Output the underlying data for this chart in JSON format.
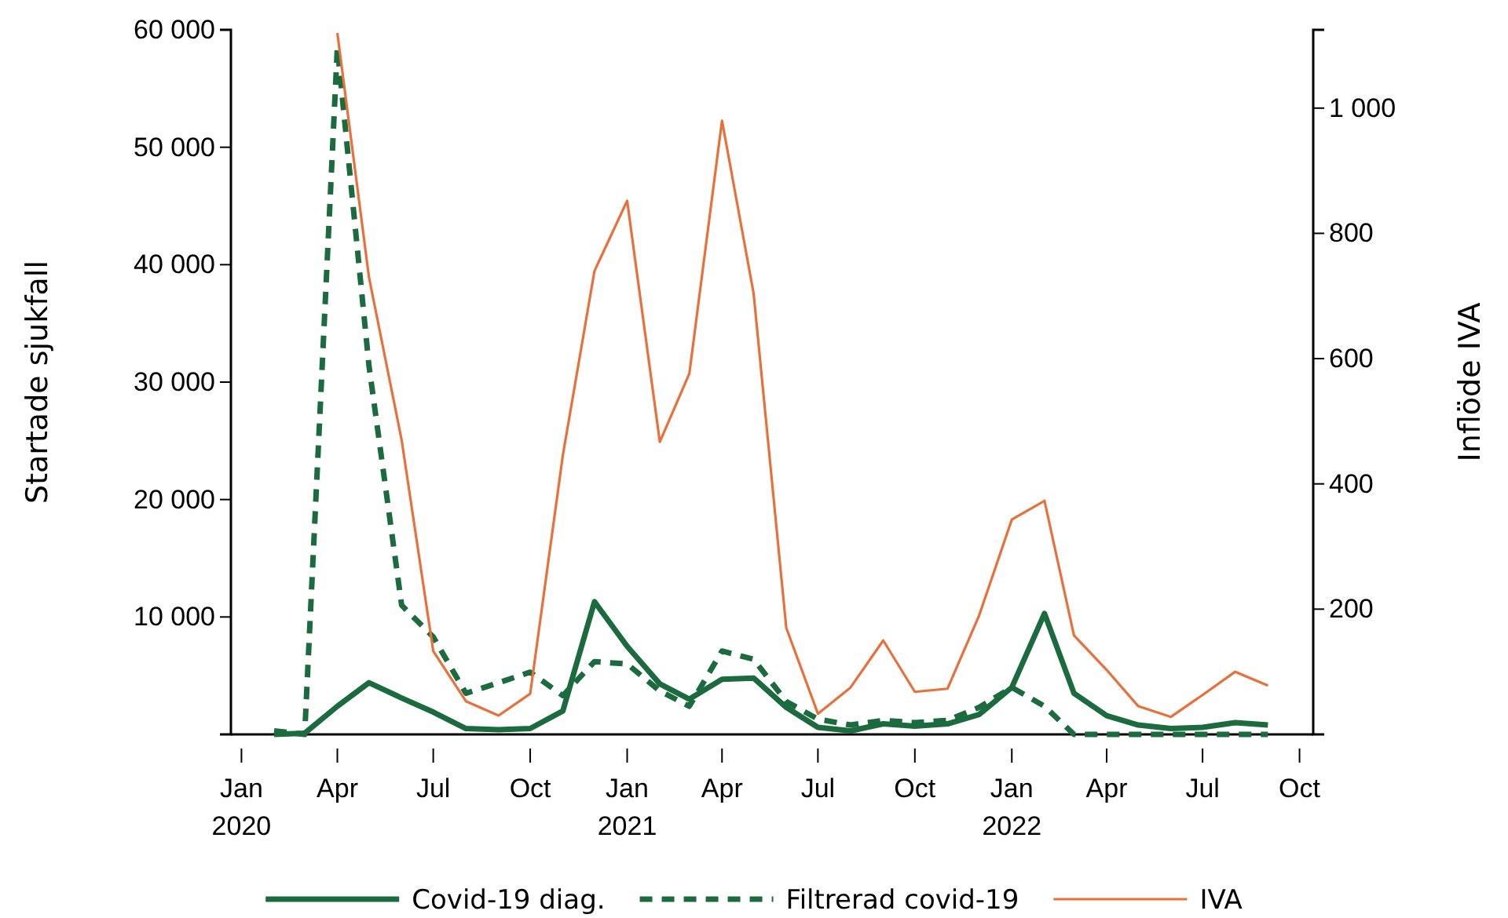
{
  "chart_data": {
    "type": "line",
    "ylabel": "Startade sjukfall",
    "y2label": "Inflöde IVA",
    "x": [
      "2020-02",
      "2020-03",
      "2020-04",
      "2020-05",
      "2020-06",
      "2020-07",
      "2020-08",
      "2020-09",
      "2020-10",
      "2020-11",
      "2020-12",
      "2021-01",
      "2021-02",
      "2021-03",
      "2021-04",
      "2021-05",
      "2021-06",
      "2021-07",
      "2021-08",
      "2021-09",
      "2021-10",
      "2021-11",
      "2021-12",
      "2022-01",
      "2022-02",
      "2022-03",
      "2022-04",
      "2022-05",
      "2022-06",
      "2022-07",
      "2022-08",
      "2022-09"
    ],
    "series": [
      {
        "name": "Covid-19 diag.",
        "color": "#1b6b3f",
        "line_style": "solid",
        "values": [
          0,
          100,
          2400,
          4400,
          3100,
          1900,
          500,
          400,
          500,
          2000,
          11300,
          7500,
          4300,
          3000,
          4700,
          4800,
          2300,
          600,
          300,
          900,
          700,
          900,
          1700,
          4000,
          10300,
          3500,
          1600,
          800,
          500,
          600,
          1000,
          800
        ]
      },
      {
        "name": "Filtrerad covid-19",
        "color": "#1b6b3f",
        "line_style": "dashed",
        "values": [
          300,
          0,
          58500,
          31400,
          11000,
          8300,
          3500,
          4400,
          5300,
          3300,
          6200,
          6000,
          3700,
          2400,
          7100,
          6400,
          2800,
          1300,
          800,
          1200,
          1000,
          1200,
          2300,
          4000,
          2400,
          0,
          0,
          0,
          0,
          0,
          0,
          0
        ]
      },
      {
        "name": "IVA",
        "color": "#e8703a",
        "line_style": "solid",
        "axis": "y2",
        "x": [
          "2020-04",
          "2020-05",
          "2020-06",
          "2020-07",
          "2020-08",
          "2020-09",
          "2020-10",
          "2020-11",
          "2020-12",
          "2021-01",
          "2021-02",
          "2021-03",
          "2021-04",
          "2021-05",
          "2021-06",
          "2021-07",
          "2021-08",
          "2021-09",
          "2021-10",
          "2021-11",
          "2021-12",
          "2022-01",
          "2022-02",
          "2022-03",
          "2022-04",
          "2022-05",
          "2022-06",
          "2022-07",
          "2022-08",
          "2022-09"
        ],
        "values": [
          1120,
          730,
          470,
          133,
          53,
          30,
          65,
          446,
          740,
          852,
          467,
          576,
          980,
          704,
          170,
          33,
          75,
          150,
          68,
          73,
          190,
          343,
          373,
          158,
          103,
          45,
          28,
          63,
          100,
          78
        ]
      }
    ],
    "xlim": [
      "2019-12-22",
      "2022-10-14"
    ],
    "xticks": [
      {
        "value": "2020-01",
        "label": "Jan\n2020"
      },
      {
        "value": "2020-04",
        "label": "Apr"
      },
      {
        "value": "2020-07",
        "label": "Jul"
      },
      {
        "value": "2020-10",
        "label": "Oct"
      },
      {
        "value": "2021-01",
        "label": "Jan\n2021"
      },
      {
        "value": "2021-04",
        "label": "Apr"
      },
      {
        "value": "2021-07",
        "label": "Jul"
      },
      {
        "value": "2021-10",
        "label": "Oct"
      },
      {
        "value": "2022-01",
        "label": "Jan\n2022"
      },
      {
        "value": "2022-04",
        "label": "Apr"
      },
      {
        "value": "2022-07",
        "label": "Jul"
      },
      {
        "value": "2022-10",
        "label": "Oct"
      }
    ],
    "ylim": [
      0,
      60000
    ],
    "yticks": [
      {
        "value": 10000,
        "label": "10 000"
      },
      {
        "value": 20000,
        "label": "20 000"
      },
      {
        "value": 30000,
        "label": "30 000"
      },
      {
        "value": 40000,
        "label": "40 000"
      },
      {
        "value": 50000,
        "label": "50 000"
      },
      {
        "value": 60000,
        "label": "60 000"
      }
    ],
    "y2lim": [
      0,
      1125
    ],
    "y2ticks": [
      200,
      400,
      600,
      800,
      {
        "value": 1000,
        "label": "1 000"
      }
    ],
    "grid": false,
    "legend": "bottom"
  }
}
